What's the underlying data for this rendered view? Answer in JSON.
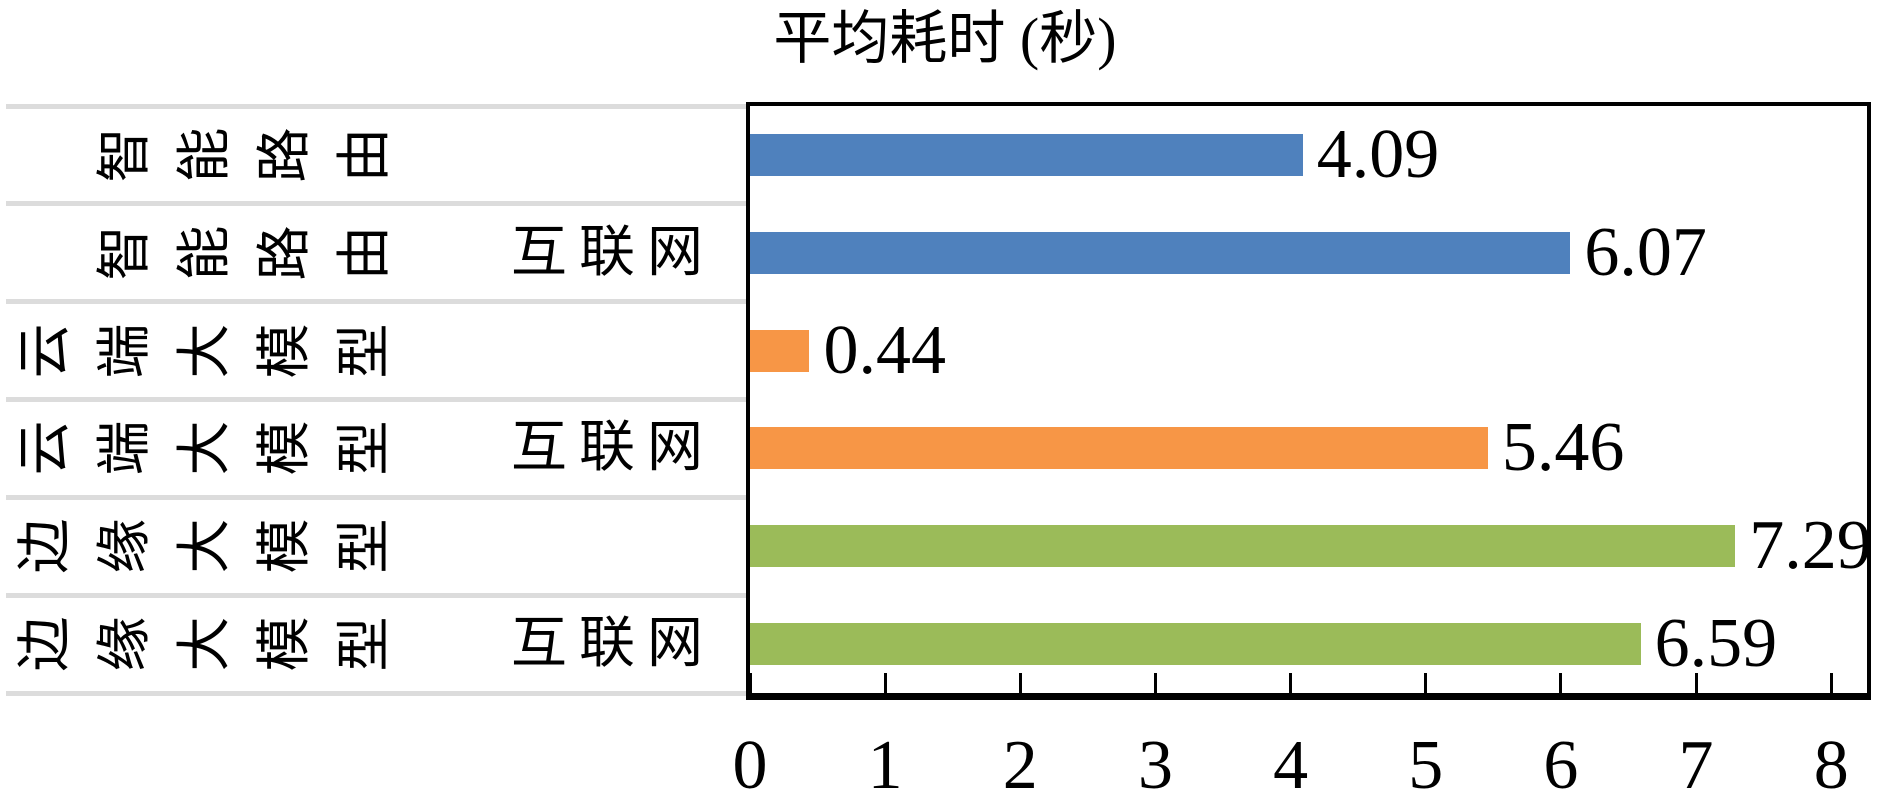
{
  "title": "平均耗时 (秒)",
  "colors": {
    "blue": "#4F81BD",
    "orange": "#F79646",
    "green": "#9BBB59",
    "grid_line": "#DCDCDC",
    "plot_border": "#000000",
    "background": "#FFFFFF",
    "text": "#000000"
  },
  "chart_data": {
    "type": "bar",
    "orientation": "horizontal",
    "title": "平均耗时 (秒)",
    "xlabel": "",
    "ylabel": "",
    "xlim": [
      0,
      8.25
    ],
    "xticks": [
      "0",
      "1",
      "2",
      "3",
      "4",
      "5",
      "6",
      "7",
      "8"
    ],
    "grid": "horizontal row-separator lines in left label gutter only",
    "legend": "none",
    "value_label_position": "right of bar end",
    "y_label_style": "category characters rotated 90° CCW; network suffix upright",
    "categories": [
      "智能路由",
      "智能路由 互联网",
      "云端大模型",
      "云端大模型 互联网",
      "边缘大模型",
      "边缘大模型 互联网"
    ],
    "rows": [
      {
        "group": "智能路由",
        "network": "",
        "value": 4.09,
        "label": "4.09",
        "color": "#4F81BD"
      },
      {
        "group": "智能路由",
        "network": "互联网",
        "value": 6.07,
        "label": "6.07",
        "color": "#4F81BD"
      },
      {
        "group": "云端大模型",
        "network": "",
        "value": 0.44,
        "label": "0.44",
        "color": "#F79646"
      },
      {
        "group": "云端大模型",
        "network": "互联网",
        "value": 5.46,
        "label": "5.46",
        "color": "#F79646"
      },
      {
        "group": "边缘大模型",
        "network": "",
        "value": 7.29,
        "label": "7.29",
        "color": "#9BBB59"
      },
      {
        "group": "边缘大模型",
        "network": "互联网",
        "value": 6.59,
        "label": "6.59",
        "color": "#9BBB59"
      }
    ]
  }
}
